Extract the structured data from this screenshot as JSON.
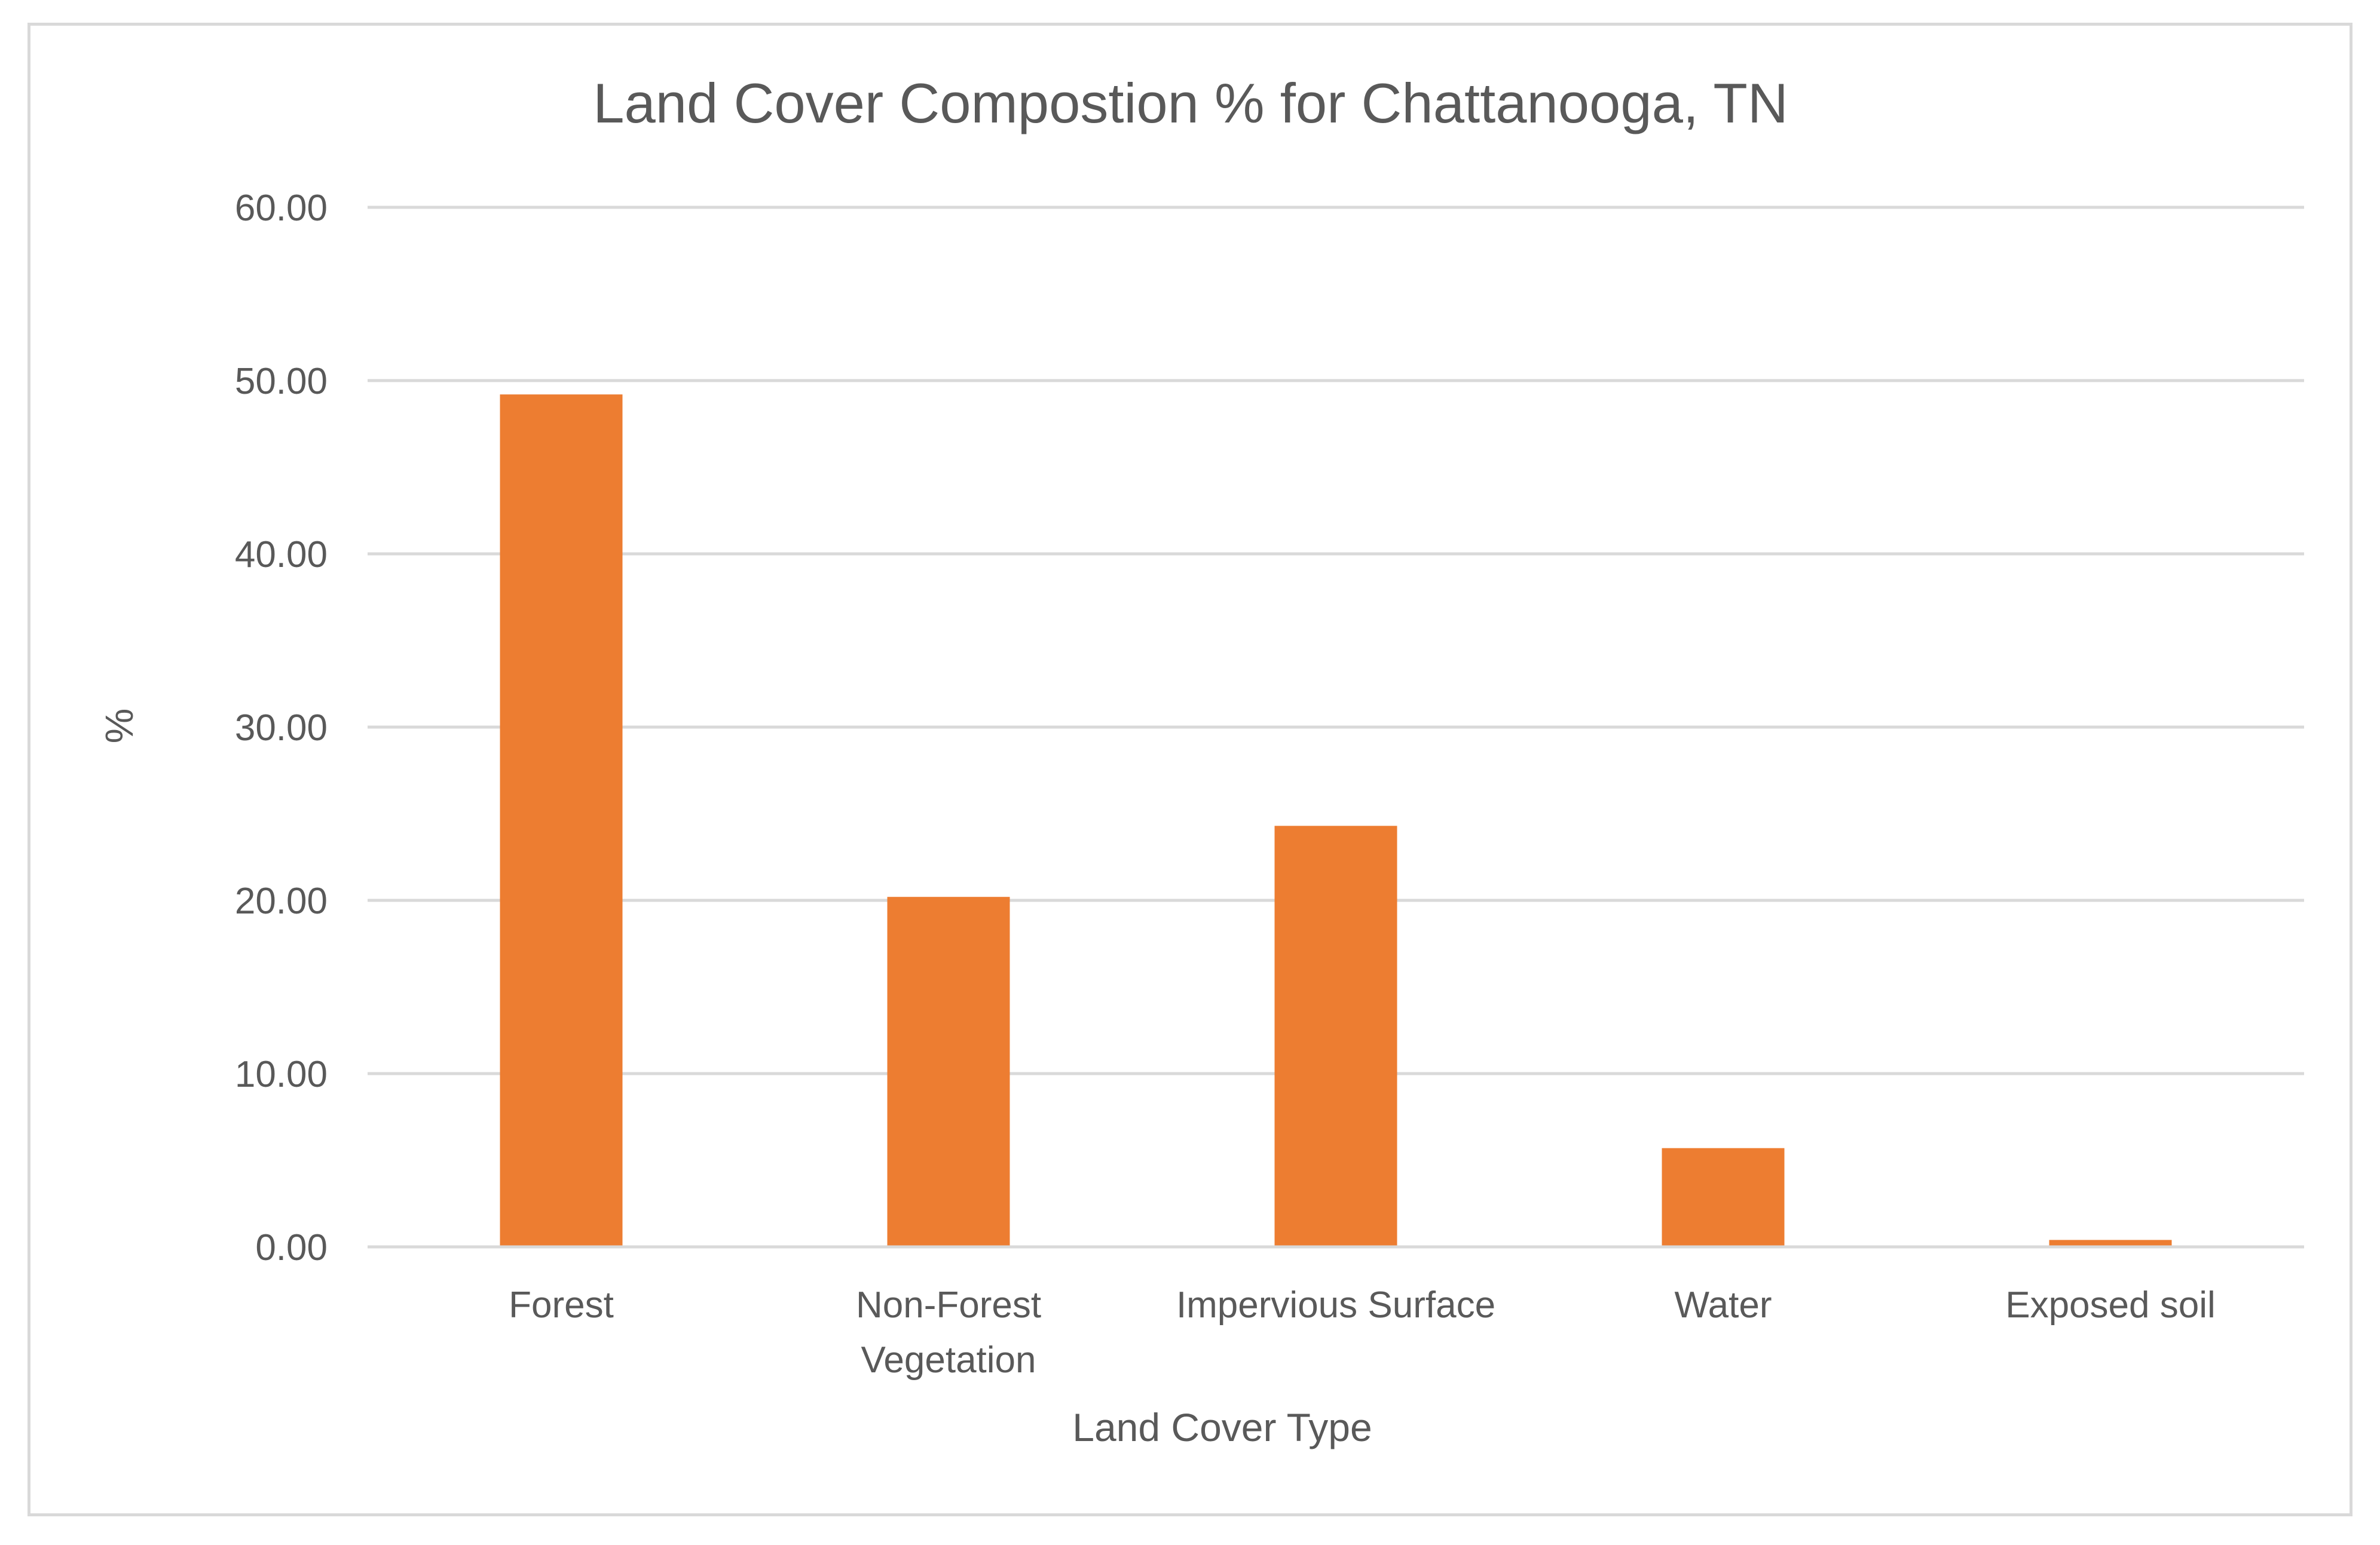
{
  "chart_data": {
    "type": "bar",
    "title": "Land Cover Compostion % for Chattanooga, TN",
    "xlabel": "Land Cover Type",
    "ylabel": "%",
    "categories": [
      [
        "Forest"
      ],
      [
        "Non-Forest",
        "Vegetation"
      ],
      [
        "Impervious Surface"
      ],
      [
        "Water"
      ],
      [
        "Exposed soil"
      ]
    ],
    "values": [
      49.2,
      20.2,
      24.3,
      5.7,
      0.4
    ],
    "ylim": [
      0,
      60
    ],
    "yticks": [
      "0.00",
      "10.00",
      "20.00",
      "30.00",
      "40.00",
      "50.00",
      "60.00"
    ],
    "grid": true,
    "legend": "none",
    "bar_color": "#ED7D31",
    "grid_color": "#D9D9D9",
    "text_color": "#595959"
  }
}
